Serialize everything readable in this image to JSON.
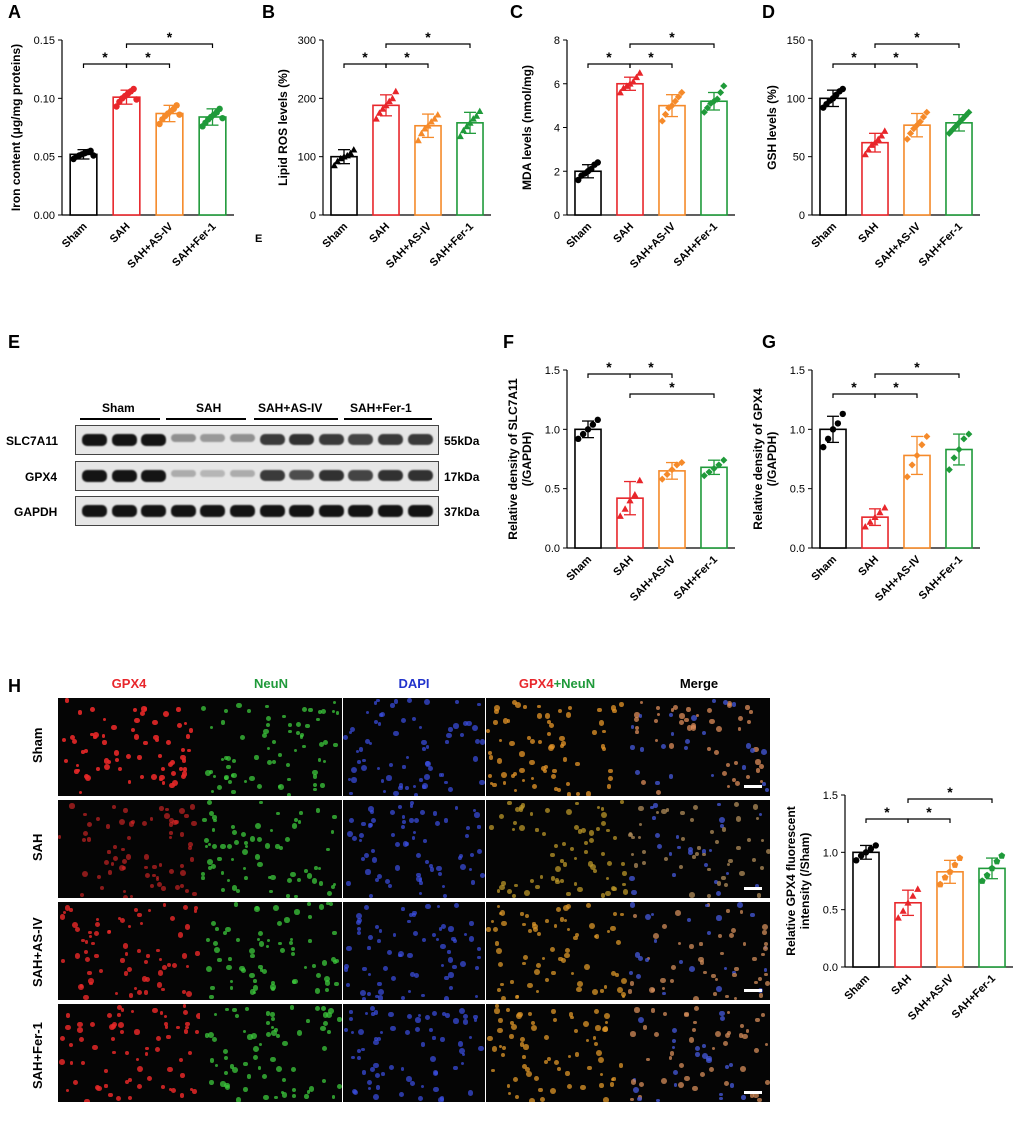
{
  "panels": {
    "A": "A",
    "B": "B",
    "C": "C",
    "D": "D",
    "E": "E",
    "F": "F",
    "G": "G",
    "H": "H"
  },
  "stray_label": "E",
  "colors": {
    "sham": "#000000",
    "sah": "#e8262b",
    "sah_asiv": "#f58a2a",
    "sah_fer1": "#1f9a3a"
  },
  "chart_data": [
    {
      "id": "A",
      "type": "bar",
      "categories": [
        "Sham",
        "SAH",
        "SAH+AS-IV",
        "SAH+Fer-1"
      ],
      "values": [
        0.052,
        0.101,
        0.087,
        0.084
      ],
      "errors": [
        0.004,
        0.006,
        0.007,
        0.007
      ],
      "points": [
        [
          0.048,
          0.05,
          0.051,
          0.052,
          0.053,
          0.054,
          0.055,
          0.051
        ],
        [
          0.093,
          0.097,
          0.1,
          0.102,
          0.104,
          0.106,
          0.108,
          0.099
        ],
        [
          0.078,
          0.082,
          0.085,
          0.087,
          0.089,
          0.091,
          0.094,
          0.086
        ],
        [
          0.076,
          0.079,
          0.082,
          0.084,
          0.086,
          0.088,
          0.091,
          0.083
        ]
      ],
      "title": "",
      "xlabel": "",
      "ylabel": "Iron content (μg/mg proteins)",
      "ylim": [
        0,
        0.15
      ],
      "yticks": [
        "0.00",
        "0.05",
        "0.10",
        "0.15"
      ],
      "sig": [
        {
          "from": 0,
          "to": 1,
          "level": 1,
          "label": "*"
        },
        {
          "from": 1,
          "to": 2,
          "level": 1,
          "label": "*"
        },
        {
          "from": 1,
          "to": 3,
          "level": 2,
          "label": "*"
        }
      ]
    },
    {
      "id": "B",
      "type": "bar",
      "categories": [
        "Sham",
        "SAH",
        "SAH+AS-IV",
        "SAH+Fer-1"
      ],
      "values": [
        100,
        188,
        153,
        158
      ],
      "errors": [
        12,
        18,
        20,
        18
      ],
      "points": [
        [
          85,
          92,
          97,
          100,
          102,
          106,
          112
        ],
        [
          165,
          175,
          182,
          188,
          195,
          200,
          212
        ],
        [
          128,
          140,
          148,
          153,
          160,
          165,
          172
        ],
        [
          135,
          145,
          152,
          158,
          165,
          170,
          178
        ]
      ],
      "title": "",
      "xlabel": "",
      "ylabel": "Lipid ROS levels (%)",
      "ylim": [
        0,
        300
      ],
      "yticks": [
        "0",
        "100",
        "200",
        "300"
      ],
      "sig": [
        {
          "from": 0,
          "to": 1,
          "level": 1,
          "label": "*"
        },
        {
          "from": 1,
          "to": 2,
          "level": 1,
          "label": "*"
        },
        {
          "from": 1,
          "to": 3,
          "level": 2,
          "label": "*"
        }
      ]
    },
    {
      "id": "C",
      "type": "bar",
      "categories": [
        "Sham",
        "SAH",
        "SAH+AS-IV",
        "SAH+Fer-1"
      ],
      "values": [
        2.0,
        6.0,
        5.0,
        5.2
      ],
      "errors": [
        0.3,
        0.3,
        0.5,
        0.4
      ],
      "points": [
        [
          1.6,
          1.8,
          1.9,
          2.0,
          2.1,
          2.3,
          2.4
        ],
        [
          5.6,
          5.8,
          5.9,
          6.0,
          6.1,
          6.3,
          6.5
        ],
        [
          4.3,
          4.6,
          4.9,
          5.0,
          5.2,
          5.4,
          5.6
        ],
        [
          4.7,
          4.9,
          5.1,
          5.2,
          5.3,
          5.6,
          5.9
        ]
      ],
      "title": "",
      "xlabel": "",
      "ylabel": "MDA levels (nmol/mg)",
      "ylim": [
        0,
        8
      ],
      "yticks": [
        "0",
        "2",
        "4",
        "6",
        "8"
      ],
      "sig": [
        {
          "from": 0,
          "to": 1,
          "level": 1,
          "label": "*"
        },
        {
          "from": 1,
          "to": 2,
          "level": 1,
          "label": "*"
        },
        {
          "from": 1,
          "to": 3,
          "level": 2,
          "label": "*"
        }
      ]
    },
    {
      "id": "D",
      "type": "bar",
      "categories": [
        "Sham",
        "SAH",
        "SAH+AS-IV",
        "SAH+Fer-1"
      ],
      "values": [
        100,
        62,
        77,
        79
      ],
      "errors": [
        7,
        8,
        10,
        7
      ],
      "points": [
        [
          92,
          95,
          98,
          100,
          103,
          106,
          108
        ],
        [
          52,
          56,
          60,
          62,
          65,
          68,
          72
        ],
        [
          65,
          70,
          74,
          77,
          80,
          84,
          88
        ],
        [
          70,
          73,
          76,
          79,
          82,
          85,
          88
        ]
      ],
      "title": "",
      "xlabel": "",
      "ylabel": "GSH levels (%)",
      "ylim": [
        0,
        150
      ],
      "yticks": [
        "0",
        "50",
        "100",
        "150"
      ],
      "sig": [
        {
          "from": 0,
          "to": 1,
          "level": 1,
          "label": "*"
        },
        {
          "from": 1,
          "to": 2,
          "level": 1,
          "label": "*"
        },
        {
          "from": 1,
          "to": 3,
          "level": 2,
          "label": "*"
        }
      ]
    },
    {
      "id": "F",
      "type": "bar",
      "categories": [
        "Sham",
        "SAH",
        "SAH+AS-IV",
        "SAH+Fer-1"
      ],
      "values": [
        1.0,
        0.42,
        0.65,
        0.68
      ],
      "errors": [
        0.07,
        0.14,
        0.07,
        0.06
      ],
      "points": [
        [
          0.92,
          0.96,
          1.0,
          1.04,
          1.08
        ],
        [
          0.27,
          0.33,
          0.4,
          0.45,
          0.57
        ],
        [
          0.58,
          0.62,
          0.66,
          0.7,
          0.72
        ],
        [
          0.61,
          0.64,
          0.67,
          0.7,
          0.74
        ]
      ],
      "title": "",
      "xlabel": "",
      "ylabel": "Relative density of SLC7A11",
      "ylabel2": "(/GAPDH)",
      "ylim": [
        0,
        1.5
      ],
      "yticks": [
        "0.0",
        "0.5",
        "1.0",
        "1.5"
      ],
      "sig": [
        {
          "from": 0,
          "to": 1,
          "level": 2,
          "label": "*"
        },
        {
          "from": 1,
          "to": 2,
          "level": 2,
          "label": "*"
        },
        {
          "from": 1,
          "to": 3,
          "level": 1,
          "label": "*"
        }
      ]
    },
    {
      "id": "G",
      "type": "bar",
      "categories": [
        "Sham",
        "SAH",
        "SAH+AS-IV",
        "SAH+Fer-1"
      ],
      "values": [
        1.0,
        0.26,
        0.78,
        0.83
      ],
      "errors": [
        0.11,
        0.07,
        0.16,
        0.13
      ],
      "points": [
        [
          0.85,
          0.92,
          1.0,
          1.05,
          1.13
        ],
        [
          0.18,
          0.22,
          0.26,
          0.3,
          0.34
        ],
        [
          0.6,
          0.7,
          0.78,
          0.87,
          0.94
        ],
        [
          0.66,
          0.76,
          0.83,
          0.92,
          0.96
        ]
      ],
      "title": "",
      "xlabel": "",
      "ylabel": "Relative density of GPX4",
      "ylabel2": "(/GAPDH)",
      "ylim": [
        0,
        1.5
      ],
      "yticks": [
        "0.0",
        "0.5",
        "1.0",
        "1.5"
      ],
      "sig": [
        {
          "from": 0,
          "to": 1,
          "level": 1,
          "label": "*"
        },
        {
          "from": 1,
          "to": 2,
          "level": 1,
          "label": "*"
        },
        {
          "from": 1,
          "to": 3,
          "level": 2,
          "label": "*"
        }
      ]
    },
    {
      "id": "H",
      "type": "bar",
      "categories": [
        "Sham",
        "SAH",
        "SAH+AS-IV",
        "SAH+Fer-1"
      ],
      "values": [
        1.0,
        0.56,
        0.83,
        0.86
      ],
      "errors": [
        0.06,
        0.11,
        0.1,
        0.09
      ],
      "points": [
        [
          0.93,
          0.97,
          1.0,
          1.03,
          1.06
        ],
        [
          0.43,
          0.49,
          0.56,
          0.62,
          0.68
        ],
        [
          0.72,
          0.78,
          0.83,
          0.89,
          0.95
        ],
        [
          0.75,
          0.8,
          0.86,
          0.92,
          0.97
        ]
      ],
      "title": "",
      "xlabel": "",
      "ylabel": "Relative GPX4 fluorescent",
      "ylabel2": "intensity (/Sham)",
      "ylim": [
        0,
        1.5
      ],
      "yticks": [
        "0.0",
        "0.5",
        "1.0",
        "1.5"
      ],
      "sig": [
        {
          "from": 0,
          "to": 1,
          "level": 1,
          "label": "*"
        },
        {
          "from": 1,
          "to": 2,
          "level": 1,
          "label": "*"
        },
        {
          "from": 1,
          "to": 3,
          "level": 2,
          "label": "*"
        }
      ]
    }
  ],
  "western_blot": {
    "groups": [
      "Sham",
      "SAH",
      "SAH+AS-IV",
      "SAH+Fer-1"
    ],
    "rows": [
      {
        "label": "SLC7A11",
        "kda": "55kDa",
        "intensity": [
          1.0,
          1.0,
          1.0,
          0.35,
          0.3,
          0.35,
          0.8,
          0.85,
          0.8,
          0.75,
          0.8,
          0.8
        ]
      },
      {
        "label": "GPX4",
        "kda": "17kDa",
        "intensity": [
          1.0,
          1.0,
          1.0,
          0.2,
          0.15,
          0.2,
          0.8,
          0.7,
          0.85,
          0.75,
          0.85,
          0.85
        ]
      },
      {
        "label": "GAPDH",
        "kda": "37kDa",
        "intensity": [
          1.0,
          1.0,
          1.0,
          1.0,
          1.0,
          1.0,
          1.0,
          1.0,
          1.0,
          1.0,
          1.0,
          1.0
        ]
      }
    ]
  },
  "micrographs": {
    "columns": [
      {
        "label": "GPX4",
        "parts": [
          {
            "text": "GPX4",
            "color": "#e8262b"
          }
        ]
      },
      {
        "label": "NeuN",
        "parts": [
          {
            "text": "NeuN",
            "color": "#1f9a3a"
          }
        ]
      },
      {
        "label": "DAPI",
        "parts": [
          {
            "text": "DAPI",
            "color": "#2233cc"
          }
        ]
      },
      {
        "label": "GPX4+NeuN",
        "parts": [
          {
            "text": "GPX4",
            "color": "#e8262b"
          },
          {
            "text": "+NeuN",
            "color": "#1f9a3a"
          }
        ]
      },
      {
        "label": "Merge",
        "parts": [
          {
            "text": "Merge",
            "color": "#000000"
          }
        ]
      }
    ],
    "rows": [
      "Sham",
      "SAH",
      "SAH+AS-IV",
      "SAH+Fer-1"
    ],
    "gpx4_level": [
      1.0,
      0.45,
      0.85,
      0.9
    ]
  }
}
